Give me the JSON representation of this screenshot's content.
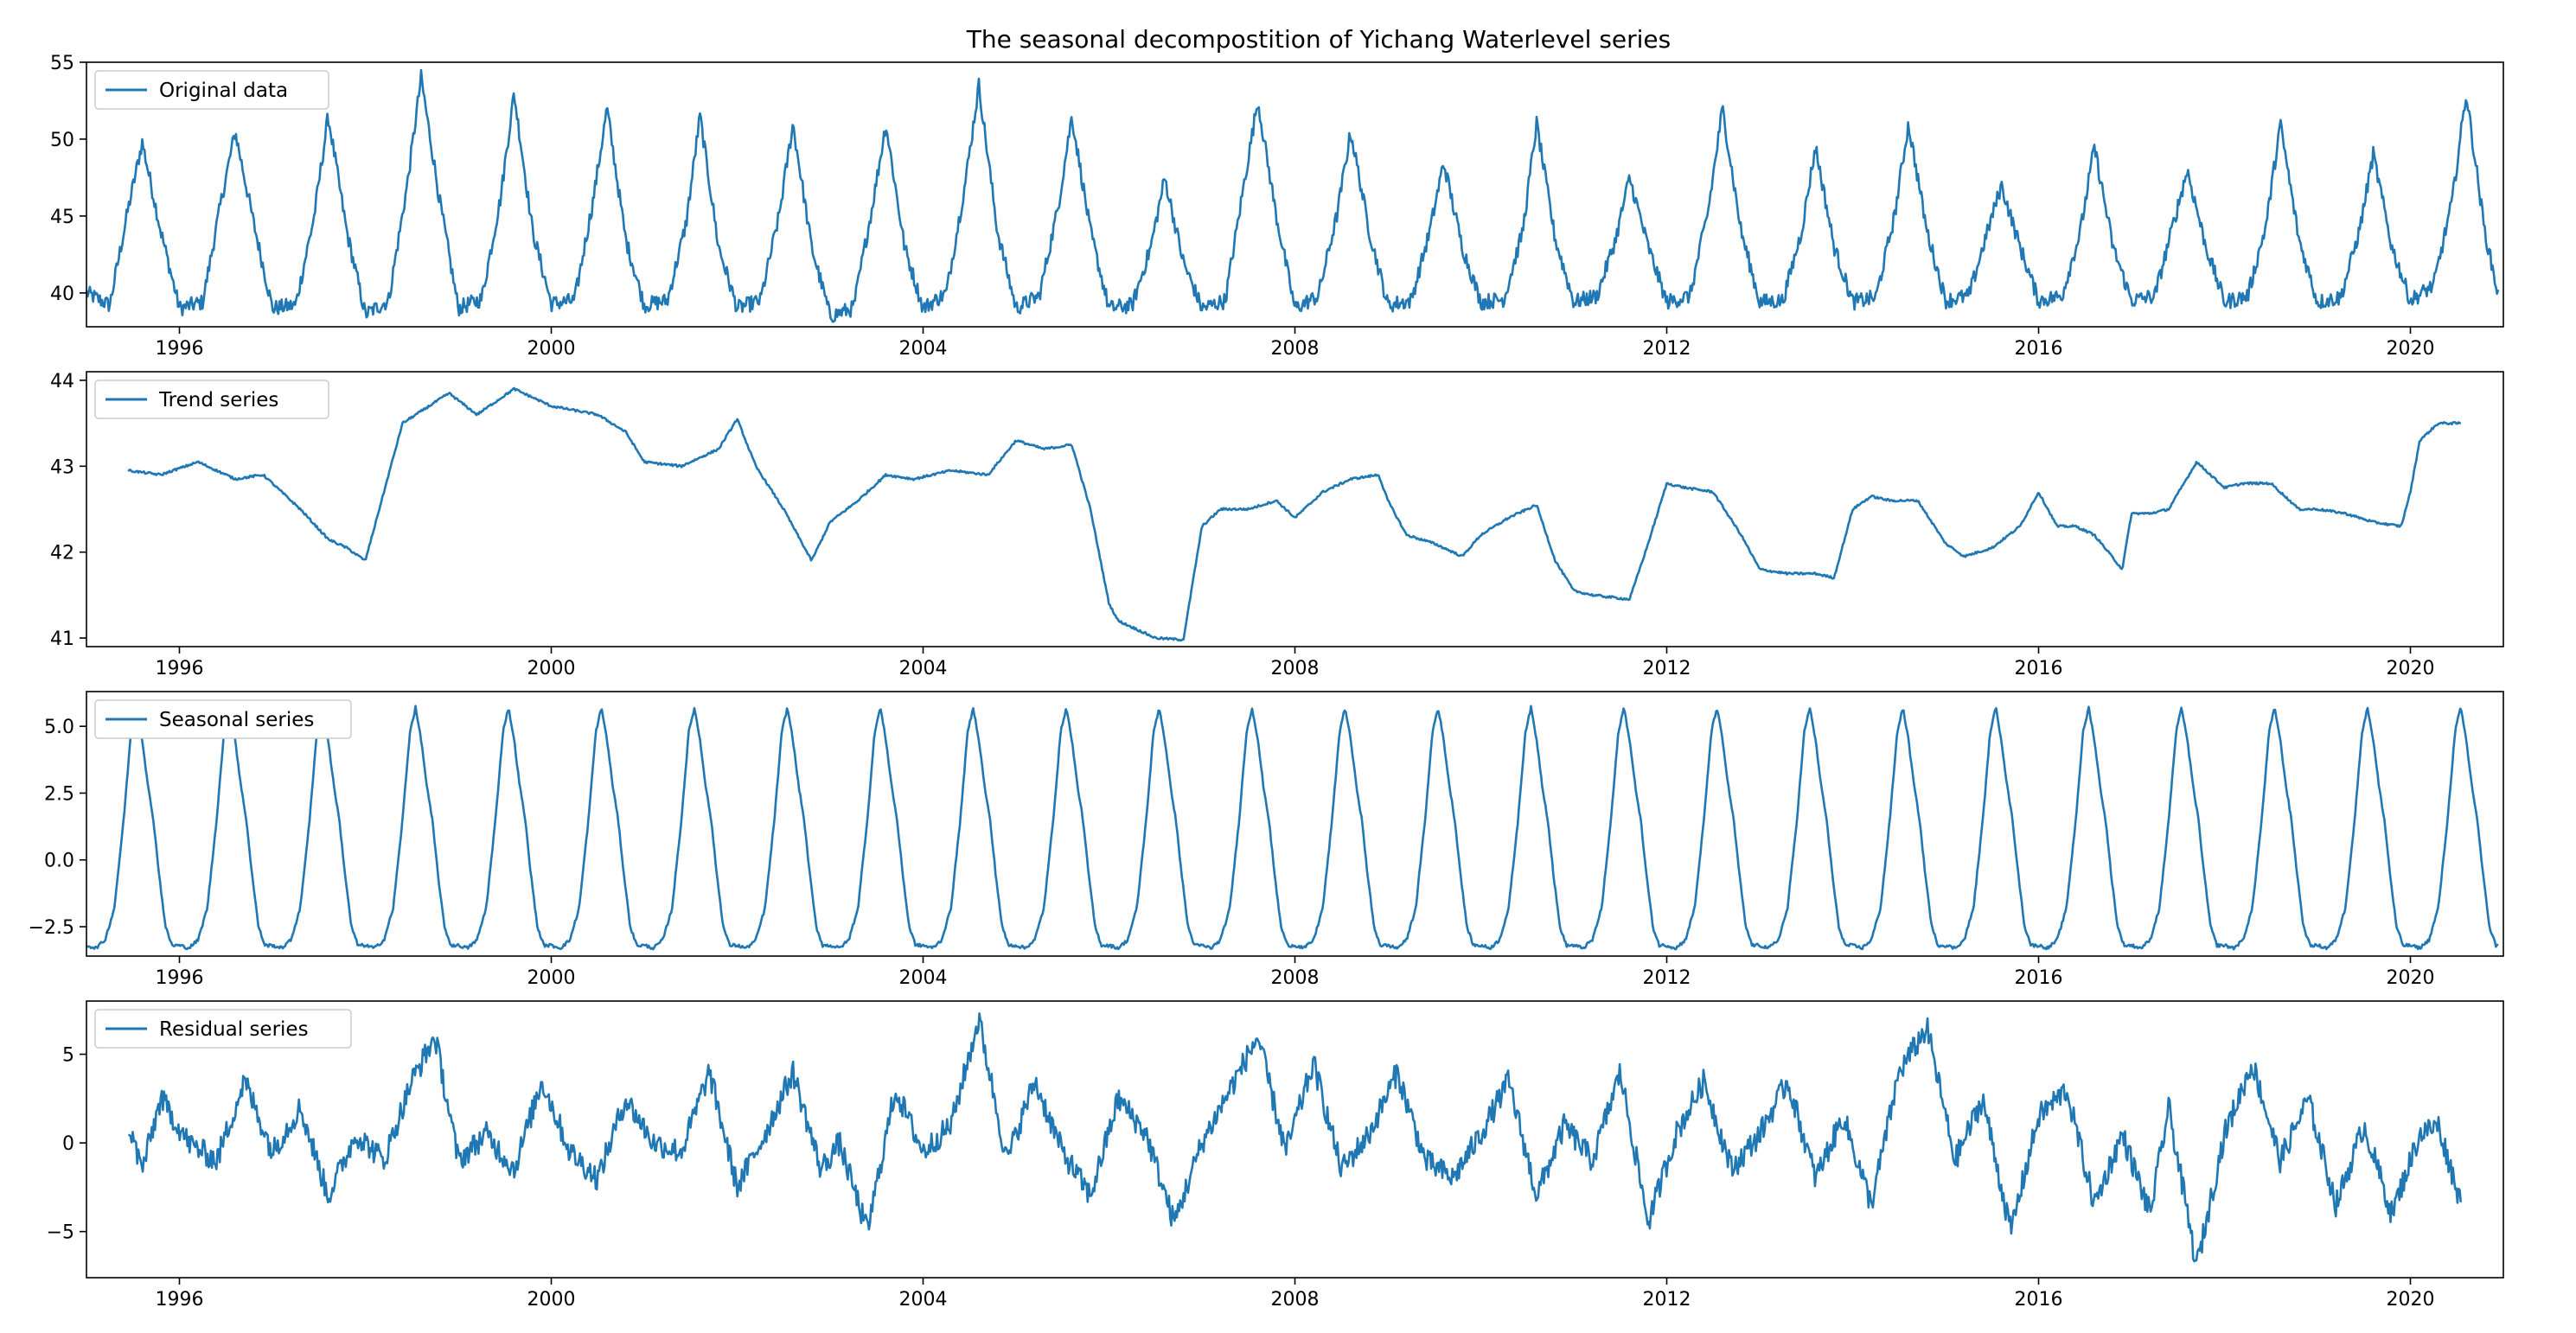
{
  "figure": {
    "title": "The seasonal decompostition of Yichang Waterlevel series",
    "series_color": "#1f77b4"
  },
  "chart_data": [
    {
      "type": "line",
      "legend": "Original data",
      "legend_position": "top-left",
      "grid": false,
      "xlim": [
        1995.0,
        2021.0
      ],
      "ylim": [
        37.8,
        55.0
      ],
      "x_ticks": [
        1996,
        2000,
        2004,
        2008,
        2012,
        2016,
        2020
      ],
      "y_ticks": [
        40,
        45,
        50,
        55
      ],
      "y_tick_labels": [
        "40",
        "45",
        "50",
        "55"
      ],
      "series_range": [
        1995.0,
        2020.95
      ],
      "x": [
        1995.0,
        1995.25,
        1995.45,
        1995.6,
        1995.8,
        1996.0,
        1996.25,
        1996.45,
        1996.6,
        1996.8,
        1997.0,
        1997.25,
        1997.45,
        1997.6,
        1997.8,
        1998.0,
        1998.25,
        1998.45,
        1998.6,
        1998.8,
        1999.0,
        1999.25,
        1999.45,
        1999.6,
        1999.8,
        2000.0,
        2000.25,
        2000.45,
        2000.6,
        2000.8,
        2001.0,
        2001.25,
        2001.45,
        2001.6,
        2001.8,
        2002.0,
        2002.25,
        2002.45,
        2002.6,
        2002.8,
        2003.0,
        2003.25,
        2003.45,
        2003.6,
        2003.8,
        2004.0,
        2004.25,
        2004.45,
        2004.6,
        2004.8,
        2005.0,
        2005.25,
        2005.45,
        2005.6,
        2005.8,
        2006.0,
        2006.25,
        2006.45,
        2006.6,
        2006.8,
        2007.0,
        2007.25,
        2007.45,
        2007.6,
        2007.8,
        2008.0,
        2008.25,
        2008.45,
        2008.6,
        2008.8,
        2009.0,
        2009.25,
        2009.45,
        2009.6,
        2009.8,
        2010.0,
        2010.25,
        2010.45,
        2010.6,
        2010.8,
        2011.0,
        2011.25,
        2011.45,
        2011.6,
        2011.8,
        2012.0,
        2012.25,
        2012.45,
        2012.6,
        2012.8,
        2013.0,
        2013.25,
        2013.45,
        2013.6,
        2013.8,
        2014.0,
        2014.25,
        2014.45,
        2014.6,
        2014.8,
        2015.0,
        2015.25,
        2015.45,
        2015.6,
        2015.8,
        2016.0,
        2016.25,
        2016.45,
        2016.6,
        2016.8,
        2017.0,
        2017.25,
        2017.45,
        2017.6,
        2017.8,
        2018.0,
        2018.25,
        2018.45,
        2018.6,
        2018.8,
        2019.0,
        2019.25,
        2019.45,
        2019.6,
        2019.8,
        2020.0,
        2020.25,
        2020.45,
        2020.6,
        2020.8,
        2020.95
      ],
      "y": [
        40.0,
        39.2,
        45.5,
        49.8,
        44.0,
        39.0,
        39.4,
        46.0,
        50.5,
        44.5,
        39.0,
        39.2,
        45.0,
        51.5,
        44.0,
        38.6,
        39.5,
        47.0,
        54.0,
        46.0,
        39.0,
        39.6,
        46.0,
        53.0,
        44.0,
        39.3,
        39.5,
        46.0,
        52.0,
        43.5,
        39.2,
        39.5,
        44.5,
        51.5,
        43.0,
        39.0,
        39.5,
        45.0,
        51.0,
        43.0,
        38.5,
        39.0,
        45.5,
        51.0,
        43.0,
        39.0,
        40.0,
        47.0,
        53.5,
        44.0,
        39.0,
        39.8,
        45.5,
        51.5,
        44.0,
        39.0,
        39.2,
        43.0,
        47.5,
        42.0,
        39.0,
        39.5,
        47.0,
        52.5,
        45.0,
        39.0,
        39.8,
        45.0,
        50.5,
        44.0,
        39.2,
        39.5,
        44.0,
        48.5,
        43.0,
        39.4,
        39.6,
        44.0,
        51.0,
        43.5,
        39.4,
        39.8,
        43.5,
        47.5,
        43.0,
        39.4,
        39.8,
        45.5,
        52.0,
        44.0,
        39.4,
        39.5,
        44.0,
        49.5,
        43.0,
        39.4,
        39.7,
        45.0,
        51.0,
        44.0,
        39.5,
        39.8,
        44.0,
        47.0,
        43.0,
        39.5,
        39.8,
        44.0,
        49.5,
        43.0,
        39.5,
        39.8,
        44.5,
        48.0,
        43.0,
        39.4,
        39.8,
        44.5,
        51.0,
        43.5,
        39.4,
        39.7,
        44.0,
        49.0,
        43.0,
        39.5,
        40.5,
        46.0,
        53.0,
        44.0,
        39.7
      ]
    },
    {
      "type": "line",
      "legend": "Trend series",
      "legend_position": "top-left",
      "grid": false,
      "xlim": [
        1995.0,
        2021.0
      ],
      "ylim": [
        40.9,
        44.1
      ],
      "x_ticks": [
        1996,
        2000,
        2004,
        2008,
        2012,
        2016,
        2020
      ],
      "y_ticks": [
        41,
        42,
        43,
        44
      ],
      "y_tick_labels": [
        "41",
        "42",
        "43",
        "44"
      ],
      "series_range": [
        1995.45,
        2020.55
      ],
      "x": [
        1995.45,
        1995.8,
        1996.2,
        1996.6,
        1996.9,
        1997.3,
        1997.6,
        1997.8,
        1998.0,
        1998.4,
        1998.9,
        1999.2,
        1999.6,
        2000.0,
        2000.5,
        2000.8,
        2001.0,
        2001.4,
        2001.8,
        2002.0,
        2002.2,
        2002.5,
        2002.8,
        2003.0,
        2003.3,
        2003.6,
        2003.9,
        2004.1,
        2004.3,
        2004.7,
        2005.0,
        2005.3,
        2005.6,
        2005.8,
        2006.0,
        2006.1,
        2006.3,
        2006.5,
        2006.8,
        2007.0,
        2007.2,
        2007.5,
        2007.8,
        2008.0,
        2008.3,
        2008.6,
        2008.9,
        2009.0,
        2009.2,
        2009.5,
        2009.8,
        2010.0,
        2010.3,
        2010.6,
        2010.8,
        2011.0,
        2011.2,
        2011.6,
        2011.8,
        2012.0,
        2012.2,
        2012.5,
        2012.8,
        2013.0,
        2013.3,
        2013.6,
        2013.8,
        2014.0,
        2014.2,
        2014.4,
        2014.7,
        2015.0,
        2015.2,
        2015.5,
        2015.8,
        2016.0,
        2016.2,
        2016.4,
        2016.6,
        2016.9,
        2017.0,
        2017.2,
        2017.4,
        2017.7,
        2018.0,
        2018.2,
        2018.5,
        2018.8,
        2019.0,
        2019.3,
        2019.6,
        2019.9,
        2020.0,
        2020.1,
        2020.3,
        2020.55
      ],
      "y": [
        42.95,
        42.9,
        43.05,
        42.85,
        42.9,
        42.5,
        42.15,
        42.05,
        41.9,
        43.5,
        43.85,
        43.6,
        43.9,
        43.7,
        43.6,
        43.4,
        43.05,
        43.0,
        43.2,
        43.55,
        43.0,
        42.5,
        41.9,
        42.35,
        42.6,
        42.9,
        42.85,
        42.9,
        42.95,
        42.9,
        43.3,
        43.2,
        43.25,
        42.5,
        41.4,
        41.2,
        41.1,
        41.0,
        40.98,
        42.3,
        42.5,
        42.5,
        42.6,
        42.4,
        42.7,
        42.85,
        42.9,
        42.6,
        42.2,
        42.1,
        41.95,
        42.2,
        42.4,
        42.55,
        41.9,
        41.55,
        41.5,
        41.45,
        42.1,
        42.8,
        42.75,
        42.7,
        42.2,
        41.8,
        41.75,
        41.75,
        41.7,
        42.5,
        42.65,
        42.6,
        42.6,
        42.1,
        41.95,
        42.05,
        42.3,
        42.7,
        42.3,
        42.3,
        42.2,
        41.8,
        42.45,
        42.45,
        42.5,
        43.05,
        42.75,
        42.8,
        42.8,
        42.5,
        42.5,
        42.45,
        42.35,
        42.3,
        42.7,
        43.3,
        43.5,
        43.5
      ]
    },
    {
      "type": "line",
      "legend": "Seasonal series",
      "legend_position": "top-left",
      "grid": false,
      "xlim": [
        1995.0,
        2021.0
      ],
      "ylim": [
        -3.6,
        6.3
      ],
      "x_ticks": [
        1996,
        2000,
        2004,
        2008,
        2012,
        2016,
        2020
      ],
      "y_ticks": [
        -2.5,
        0.0,
        2.5,
        5.0
      ],
      "y_tick_labels": [
        "−2.5",
        "0.0",
        "2.5",
        "5.0"
      ],
      "series_range": [
        1995.0,
        2020.95
      ],
      "periodic": true,
      "period_years": 1.0,
      "cycle_phase": [
        0.0,
        0.1,
        0.2,
        0.3,
        0.4,
        0.48,
        0.54,
        0.6,
        0.66,
        0.72,
        0.78,
        0.85,
        0.92,
        1.0
      ],
      "cycle_values": [
        -3.2,
        -3.3,
        -3.0,
        -1.8,
        1.5,
        4.8,
        5.7,
        4.5,
        2.8,
        1.5,
        -0.5,
        -2.5,
        -3.2,
        -3.2
      ]
    },
    {
      "type": "line",
      "legend": "Residual series",
      "legend_position": "top-left",
      "grid": false,
      "xlim": [
        1995.0,
        2021.0
      ],
      "ylim": [
        -7.6,
        8.0
      ],
      "x_ticks": [
        1996,
        2000,
        2004,
        2008,
        2012,
        2016,
        2020
      ],
      "y_ticks": [
        -5,
        0,
        5
      ],
      "y_tick_labels": [
        "−5",
        "0",
        "5"
      ],
      "series_range": [
        1995.45,
        2020.55
      ],
      "x": [
        1995.45,
        1995.6,
        1995.8,
        1996.1,
        1996.4,
        1996.7,
        1997.0,
        1997.3,
        1997.6,
        1997.9,
        1998.2,
        1998.5,
        1998.75,
        1999.0,
        1999.3,
        1999.6,
        1999.9,
        2000.2,
        2000.5,
        2000.8,
        2001.1,
        2001.4,
        2001.7,
        2002.0,
        2002.3,
        2002.6,
        2002.9,
        2003.1,
        2003.4,
        2003.7,
        2004.0,
        2004.3,
        2004.6,
        2004.9,
        2005.2,
        2005.5,
        2005.8,
        2006.1,
        2006.4,
        2006.7,
        2007.0,
        2007.3,
        2007.6,
        2007.9,
        2008.2,
        2008.5,
        2008.8,
        2009.1,
        2009.4,
        2009.7,
        2010.0,
        2010.3,
        2010.6,
        2010.9,
        2011.2,
        2011.5,
        2011.8,
        2012.1,
        2012.4,
        2012.7,
        2013.0,
        2013.3,
        2013.6,
        2013.9,
        2014.2,
        2014.5,
        2014.8,
        2015.1,
        2015.4,
        2015.7,
        2016.0,
        2016.3,
        2016.6,
        2016.9,
        2017.2,
        2017.4,
        2017.7,
        2018.0,
        2018.3,
        2018.6,
        2018.9,
        2019.2,
        2019.5,
        2019.8,
        2020.1,
        2020.3,
        2020.55
      ],
      "y": [
        1.0,
        -1.5,
        2.5,
        0.0,
        -1.0,
        3.5,
        -0.5,
        2.0,
        -3.0,
        0.5,
        -1.0,
        3.5,
        6.0,
        -1.0,
        0.5,
        -1.5,
        3.5,
        -0.5,
        -2.0,
        2.5,
        0.0,
        -0.5,
        4.0,
        -2.5,
        0.5,
        4.0,
        -1.5,
        0.0,
        -5.0,
        3.0,
        -0.5,
        1.0,
        7.0,
        -1.0,
        3.5,
        -0.5,
        -3.0,
        2.5,
        0.5,
        -4.5,
        0.0,
        3.0,
        6.0,
        -0.5,
        4.5,
        -1.5,
        0.5,
        4.0,
        -1.0,
        -2.0,
        0.5,
        3.5,
        -3.0,
        1.0,
        -1.0,
        4.0,
        -4.5,
        0.5,
        3.5,
        -1.5,
        0.5,
        3.5,
        -2.0,
        1.5,
        -3.5,
        4.0,
        6.5,
        -1.0,
        2.5,
        -5.0,
        1.5,
        3.0,
        -3.5,
        0.5,
        -4.0,
        2.0,
        -7.0,
        0.5,
        4.5,
        -1.0,
        2.5,
        -3.5,
        1.0,
        -4.0,
        0.5,
        1.0,
        -3.5
      ]
    }
  ]
}
